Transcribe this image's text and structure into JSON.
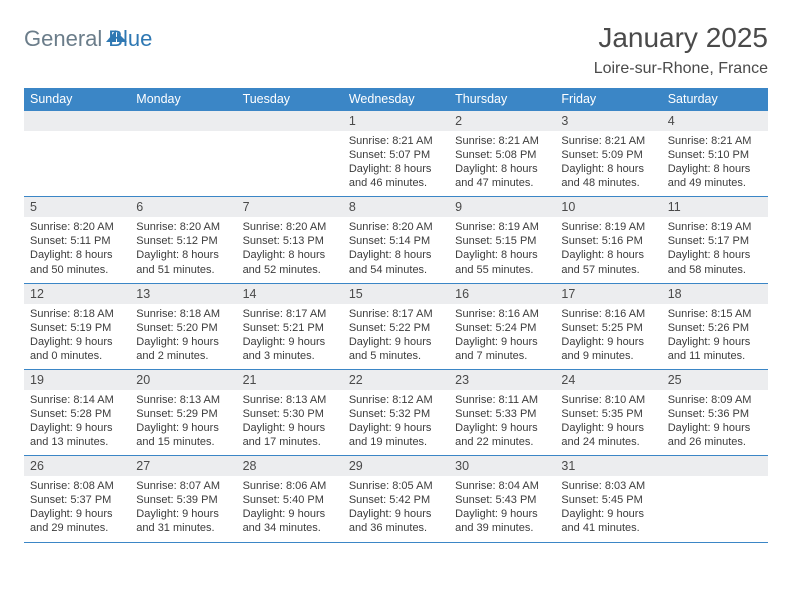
{
  "brand": {
    "part1": "General",
    "part2": "Blue"
  },
  "title": "January 2025",
  "subtitle": "Loire-sur-Rhone, France",
  "colors": {
    "header_bg": "#3b86c6",
    "header_text": "#ffffff",
    "daynum_bg": "#ecedef",
    "text": "#4a4a4a",
    "body_text": "#3c3c3c",
    "rule": "#3b86c6",
    "brand_gray": "#6b7d8a",
    "brand_blue": "#2f78b3"
  },
  "typography": {
    "title_fontsize": 28,
    "subtitle_fontsize": 16,
    "dow_fontsize": 12.5,
    "daynum_fontsize": 12.5,
    "body_fontsize": 11
  },
  "days_of_week": [
    "Sunday",
    "Monday",
    "Tuesday",
    "Wednesday",
    "Thursday",
    "Friday",
    "Saturday"
  ],
  "weeks": [
    [
      null,
      null,
      null,
      {
        "n": "1",
        "sunrise": "8:21 AM",
        "sunset": "5:07 PM",
        "dl1": "Daylight: 8 hours",
        "dl2": "and 46 minutes."
      },
      {
        "n": "2",
        "sunrise": "8:21 AM",
        "sunset": "5:08 PM",
        "dl1": "Daylight: 8 hours",
        "dl2": "and 47 minutes."
      },
      {
        "n": "3",
        "sunrise": "8:21 AM",
        "sunset": "5:09 PM",
        "dl1": "Daylight: 8 hours",
        "dl2": "and 48 minutes."
      },
      {
        "n": "4",
        "sunrise": "8:21 AM",
        "sunset": "5:10 PM",
        "dl1": "Daylight: 8 hours",
        "dl2": "and 49 minutes."
      }
    ],
    [
      {
        "n": "5",
        "sunrise": "8:20 AM",
        "sunset": "5:11 PM",
        "dl1": "Daylight: 8 hours",
        "dl2": "and 50 minutes."
      },
      {
        "n": "6",
        "sunrise": "8:20 AM",
        "sunset": "5:12 PM",
        "dl1": "Daylight: 8 hours",
        "dl2": "and 51 minutes."
      },
      {
        "n": "7",
        "sunrise": "8:20 AM",
        "sunset": "5:13 PM",
        "dl1": "Daylight: 8 hours",
        "dl2": "and 52 minutes."
      },
      {
        "n": "8",
        "sunrise": "8:20 AM",
        "sunset": "5:14 PM",
        "dl1": "Daylight: 8 hours",
        "dl2": "and 54 minutes."
      },
      {
        "n": "9",
        "sunrise": "8:19 AM",
        "sunset": "5:15 PM",
        "dl1": "Daylight: 8 hours",
        "dl2": "and 55 minutes."
      },
      {
        "n": "10",
        "sunrise": "8:19 AM",
        "sunset": "5:16 PM",
        "dl1": "Daylight: 8 hours",
        "dl2": "and 57 minutes."
      },
      {
        "n": "11",
        "sunrise": "8:19 AM",
        "sunset": "5:17 PM",
        "dl1": "Daylight: 8 hours",
        "dl2": "and 58 minutes."
      }
    ],
    [
      {
        "n": "12",
        "sunrise": "8:18 AM",
        "sunset": "5:19 PM",
        "dl1": "Daylight: 9 hours",
        "dl2": "and 0 minutes."
      },
      {
        "n": "13",
        "sunrise": "8:18 AM",
        "sunset": "5:20 PM",
        "dl1": "Daylight: 9 hours",
        "dl2": "and 2 minutes."
      },
      {
        "n": "14",
        "sunrise": "8:17 AM",
        "sunset": "5:21 PM",
        "dl1": "Daylight: 9 hours",
        "dl2": "and 3 minutes."
      },
      {
        "n": "15",
        "sunrise": "8:17 AM",
        "sunset": "5:22 PM",
        "dl1": "Daylight: 9 hours",
        "dl2": "and 5 minutes."
      },
      {
        "n": "16",
        "sunrise": "8:16 AM",
        "sunset": "5:24 PM",
        "dl1": "Daylight: 9 hours",
        "dl2": "and 7 minutes."
      },
      {
        "n": "17",
        "sunrise": "8:16 AM",
        "sunset": "5:25 PM",
        "dl1": "Daylight: 9 hours",
        "dl2": "and 9 minutes."
      },
      {
        "n": "18",
        "sunrise": "8:15 AM",
        "sunset": "5:26 PM",
        "dl1": "Daylight: 9 hours",
        "dl2": "and 11 minutes."
      }
    ],
    [
      {
        "n": "19",
        "sunrise": "8:14 AM",
        "sunset": "5:28 PM",
        "dl1": "Daylight: 9 hours",
        "dl2": "and 13 minutes."
      },
      {
        "n": "20",
        "sunrise": "8:13 AM",
        "sunset": "5:29 PM",
        "dl1": "Daylight: 9 hours",
        "dl2": "and 15 minutes."
      },
      {
        "n": "21",
        "sunrise": "8:13 AM",
        "sunset": "5:30 PM",
        "dl1": "Daylight: 9 hours",
        "dl2": "and 17 minutes."
      },
      {
        "n": "22",
        "sunrise": "8:12 AM",
        "sunset": "5:32 PM",
        "dl1": "Daylight: 9 hours",
        "dl2": "and 19 minutes."
      },
      {
        "n": "23",
        "sunrise": "8:11 AM",
        "sunset": "5:33 PM",
        "dl1": "Daylight: 9 hours",
        "dl2": "and 22 minutes."
      },
      {
        "n": "24",
        "sunrise": "8:10 AM",
        "sunset": "5:35 PM",
        "dl1": "Daylight: 9 hours",
        "dl2": "and 24 minutes."
      },
      {
        "n": "25",
        "sunrise": "8:09 AM",
        "sunset": "5:36 PM",
        "dl1": "Daylight: 9 hours",
        "dl2": "and 26 minutes."
      }
    ],
    [
      {
        "n": "26",
        "sunrise": "8:08 AM",
        "sunset": "5:37 PM",
        "dl1": "Daylight: 9 hours",
        "dl2": "and 29 minutes."
      },
      {
        "n": "27",
        "sunrise": "8:07 AM",
        "sunset": "5:39 PM",
        "dl1": "Daylight: 9 hours",
        "dl2": "and 31 minutes."
      },
      {
        "n": "28",
        "sunrise": "8:06 AM",
        "sunset": "5:40 PM",
        "dl1": "Daylight: 9 hours",
        "dl2": "and 34 minutes."
      },
      {
        "n": "29",
        "sunrise": "8:05 AM",
        "sunset": "5:42 PM",
        "dl1": "Daylight: 9 hours",
        "dl2": "and 36 minutes."
      },
      {
        "n": "30",
        "sunrise": "8:04 AM",
        "sunset": "5:43 PM",
        "dl1": "Daylight: 9 hours",
        "dl2": "and 39 minutes."
      },
      {
        "n": "31",
        "sunrise": "8:03 AM",
        "sunset": "5:45 PM",
        "dl1": "Daylight: 9 hours",
        "dl2": "and 41 minutes."
      },
      null
    ]
  ],
  "labels": {
    "sunrise_prefix": "Sunrise: ",
    "sunset_prefix": "Sunset: "
  }
}
